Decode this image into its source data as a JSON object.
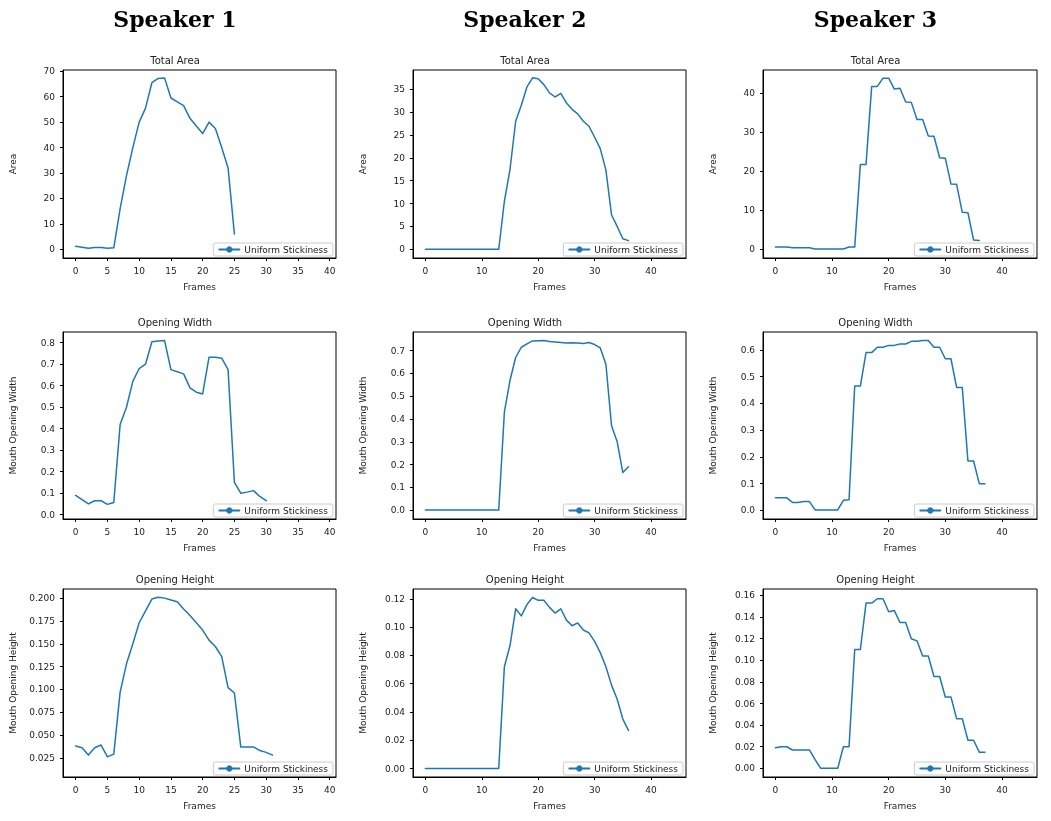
{
  "chart_data": [
    {
      "type": "line",
      "title": "Total Area",
      "annotations": [
        "Speaker 1"
      ],
      "xlabel": "Frames",
      "ylabel": "Area",
      "x": [
        0,
        1,
        2,
        3,
        4,
        5,
        6,
        7,
        8,
        9,
        10,
        11,
        12,
        13,
        14,
        15,
        16,
        17,
        18,
        19,
        20,
        21,
        22,
        23,
        24,
        25
      ],
      "series": [
        {
          "name": "Uniform Stickiness",
          "color": "#1f77b4",
          "values": [
            1.2,
            0.8,
            0.4,
            0.7,
            0.7,
            0.4,
            0.6,
            16,
            29,
            40,
            50,
            55.5,
            65.5,
            67.2,
            67.4,
            59.5,
            58,
            56.5,
            51.5,
            48.5,
            45.5,
            50,
            47.5,
            40,
            32,
            6
          ]
        }
      ],
      "xlim": [
        -2,
        41
      ],
      "xticks": [
        0,
        5,
        10,
        15,
        20,
        25,
        30,
        35,
        40
      ],
      "ylim": [
        -3.4,
        70.5
      ],
      "yticks": [
        0,
        10,
        20,
        30,
        40,
        50,
        60,
        70
      ],
      "legend": "bottom right",
      "marker": "none",
      "grid": false
    },
    {
      "type": "line",
      "title": "Total Area",
      "annotations": [
        "Speaker 2"
      ],
      "xlabel": "Frames",
      "ylabel": "Area",
      "x": [
        0,
        1,
        2,
        3,
        4,
        5,
        6,
        7,
        8,
        9,
        10,
        11,
        12,
        13,
        14,
        15,
        16,
        17,
        18,
        19,
        20,
        21,
        22,
        23,
        24,
        25,
        26,
        27,
        28,
        29,
        30,
        31,
        32,
        33,
        34,
        35,
        36
      ],
      "series": [
        {
          "name": "Uniform Stickiness",
          "color": "#1f77b4",
          "values": [
            0,
            0,
            0,
            0,
            0,
            0,
            0,
            0,
            0,
            0,
            0,
            0,
            0,
            0,
            10.5,
            17.5,
            28,
            31.5,
            35.5,
            37.5,
            37.3,
            36,
            34.2,
            33.3,
            34.1,
            32,
            30.6,
            29.6,
            28,
            26.9,
            24.5,
            22,
            17.3,
            7.5,
            5,
            2.3,
            1.9
          ]
        }
      ],
      "xlim": [
        -2.2,
        46.2
      ],
      "xticks": [
        0,
        10,
        20,
        30,
        40
      ],
      "ylim": [
        -1.9,
        39.2
      ],
      "yticks": [
        0,
        5,
        10,
        15,
        20,
        25,
        30,
        35
      ],
      "legend": "bottom right",
      "marker": "none",
      "grid": false
    },
    {
      "type": "line",
      "title": "Total Area",
      "annotations": [
        "Speaker 3"
      ],
      "xlabel": "Frames",
      "ylabel": "Area",
      "x": [
        0,
        1,
        2,
        3,
        4,
        5,
        6,
        7,
        8,
        9,
        10,
        11,
        12,
        13,
        14,
        15,
        16,
        17,
        18,
        19,
        20,
        21,
        22,
        23,
        24,
        25,
        26,
        27,
        28,
        29,
        30,
        31,
        32,
        33,
        34,
        35,
        36
      ],
      "series": [
        {
          "name": "Uniform Stickiness",
          "color": "#1f77b4",
          "values": [
            0.5,
            0.5,
            0.5,
            0.3,
            0.3,
            0.3,
            0.3,
            0,
            0,
            0,
            0,
            0,
            0,
            0.5,
            0.5,
            21.7,
            21.7,
            41.7,
            41.7,
            43.8,
            43.8,
            41,
            41.2,
            37.7,
            37.6,
            33.2,
            33.2,
            29,
            28.9,
            23.4,
            23.3,
            16.7,
            16.6,
            9.4,
            9.3,
            2.3,
            2.2
          ]
        }
      ],
      "xlim": [
        -2.2,
        46.2
      ],
      "xticks": [
        0,
        10,
        20,
        30,
        40
      ],
      "ylim": [
        -2.3,
        45.9
      ],
      "yticks": [
        0,
        10,
        20,
        30,
        40
      ],
      "legend": "bottom right",
      "marker": "none",
      "grid": false
    },
    {
      "type": "line",
      "title": "Opening Width",
      "xlabel": "Frames",
      "ylabel": "Mouth Opening Width",
      "x": [
        0,
        1,
        2,
        3,
        4,
        5,
        6,
        7,
        8,
        9,
        10,
        11,
        12,
        13,
        14,
        15,
        16,
        17,
        18,
        19,
        20,
        21,
        22,
        23,
        24,
        25,
        26,
        27,
        28,
        29,
        30
      ],
      "series": [
        {
          "name": "Uniform Stickiness",
          "color": "#1f77b4",
          "values": [
            0.09,
            0.07,
            0.05,
            0.065,
            0.065,
            0.048,
            0.057,
            0.42,
            0.5,
            0.62,
            0.68,
            0.7,
            0.805,
            0.808,
            0.81,
            0.675,
            0.665,
            0.655,
            0.59,
            0.57,
            0.562,
            0.733,
            0.732,
            0.728,
            0.675,
            0.15,
            0.1,
            0.105,
            0.112,
            0.085,
            0.065
          ]
        }
      ],
      "xlim": [
        -2,
        41
      ],
      "xticks": [
        0,
        5,
        10,
        15,
        20,
        25,
        30,
        35,
        40
      ],
      "ylim": [
        -0.02,
        0.85
      ],
      "yticks": [
        {
          "value": 0,
          "label": "0.0"
        },
        0.1,
        0.2,
        0.3,
        0.4,
        0.5,
        0.6,
        0.7,
        0.8
      ],
      "legend": "bottom right",
      "marker": "none",
      "grid": false
    },
    {
      "type": "line",
      "title": "Opening Width",
      "xlabel": "Frames",
      "ylabel": "Mouth Opening Width",
      "x": [
        0,
        1,
        2,
        3,
        4,
        5,
        6,
        7,
        8,
        9,
        10,
        11,
        12,
        13,
        14,
        15,
        16,
        17,
        18,
        19,
        20,
        21,
        22,
        23,
        24,
        25,
        26,
        27,
        28,
        29,
        30,
        31,
        32,
        33,
        34,
        35,
        36
      ],
      "series": [
        {
          "name": "Uniform Stickiness",
          "color": "#1f77b4",
          "values": [
            0,
            0,
            0,
            0,
            0,
            0,
            0,
            0,
            0,
            0,
            0,
            0,
            0,
            0,
            0.43,
            0.57,
            0.67,
            0.715,
            0.73,
            0.743,
            0.744,
            0.745,
            0.74,
            0.738,
            0.736,
            0.734,
            0.735,
            0.734,
            0.732,
            0.736,
            0.727,
            0.712,
            0.64,
            0.37,
            0.3,
            0.165,
            0.19
          ]
        }
      ],
      "xlim": [
        -2.2,
        46.2
      ],
      "xticks": [
        0,
        10,
        20,
        30,
        40
      ],
      "ylim": [
        -0.039,
        0.782
      ],
      "yticks": [
        {
          "value": 0,
          "label": "0.0"
        },
        0.1,
        0.2,
        0.3,
        0.4,
        0.5,
        0.6,
        0.7
      ],
      "legend": "bottom right",
      "marker": "none",
      "grid": false
    },
    {
      "type": "line",
      "title": "Opening Width",
      "xlabel": "Frames",
      "ylabel": "Mouth Opening Width",
      "x": [
        0,
        1,
        2,
        3,
        4,
        5,
        6,
        7,
        8,
        9,
        10,
        11,
        12,
        13,
        14,
        15,
        16,
        17,
        18,
        19,
        20,
        21,
        22,
        23,
        24,
        25,
        26,
        27,
        28,
        29,
        30,
        31,
        32,
        33,
        34,
        35,
        36,
        37
      ],
      "series": [
        {
          "name": "Uniform Stickiness",
          "color": "#1f77b4",
          "values": [
            0.047,
            0.047,
            0.047,
            0.03,
            0.03,
            0.033,
            0.033,
            0.002,
            0.002,
            0.002,
            0.002,
            0.002,
            0.038,
            0.04,
            0.465,
            0.465,
            0.59,
            0.59,
            0.61,
            0.61,
            0.617,
            0.617,
            0.622,
            0.622,
            0.632,
            0.632,
            0.635,
            0.635,
            0.61,
            0.61,
            0.567,
            0.567,
            0.46,
            0.46,
            0.185,
            0.185,
            0.1,
            0.1
          ]
        }
      ],
      "xlim": [
        -2.2,
        46.2
      ],
      "xticks": [
        0,
        10,
        20,
        30,
        40
      ],
      "ylim": [
        -0.032,
        0.667
      ],
      "yticks": [
        {
          "value": 0,
          "label": "0.0"
        },
        0.1,
        0.2,
        0.3,
        0.4,
        0.5,
        0.6
      ],
      "legend": "bottom right",
      "marker": "none",
      "grid": false
    },
    {
      "type": "line",
      "title": "Opening Height",
      "xlabel": "Frames",
      "ylabel": "Mouth Opening Height",
      "x": [
        0,
        1,
        2,
        3,
        4,
        5,
        6,
        7,
        8,
        9,
        10,
        11,
        12,
        13,
        14,
        15,
        16,
        17,
        18,
        19,
        20,
        21,
        22,
        23,
        24,
        25,
        26,
        27,
        28,
        29,
        30,
        31
      ],
      "series": [
        {
          "name": "Uniform Stickiness",
          "color": "#1f77b4",
          "values": [
            0.038,
            0.036,
            0.028,
            0.036,
            0.039,
            0.026,
            0.029,
            0.097,
            0.128,
            0.15,
            0.173,
            0.186,
            0.199,
            0.201,
            0.2,
            0.198,
            0.196,
            0.188,
            0.181,
            0.173,
            0.165,
            0.154,
            0.147,
            0.136,
            0.102,
            0.096,
            0.037,
            0.037,
            0.037,
            0.033,
            0.031,
            0.028
          ]
        }
      ],
      "xlim": [
        -2,
        41
      ],
      "xticks": [
        0,
        5,
        10,
        15,
        20,
        25,
        30,
        35,
        40
      ],
      "ylim": [
        0.004,
        0.21
      ],
      "yticks": [
        0.025,
        {
          "value": 0.05,
          "label": "0.050"
        },
        0.075,
        {
          "value": 0.1,
          "label": "0.100"
        },
        0.125,
        {
          "value": 0.15,
          "label": "0.150"
        },
        0.175,
        {
          "value": 0.2,
          "label": "0.200"
        }
      ],
      "legend": "bottom right",
      "marker": "none",
      "grid": false
    },
    {
      "type": "line",
      "title": "Opening Height",
      "xlabel": "Frames",
      "ylabel": "Mouth Opening Height",
      "x": [
        0,
        1,
        2,
        3,
        4,
        5,
        6,
        7,
        8,
        9,
        10,
        11,
        12,
        13,
        14,
        15,
        16,
        17,
        18,
        19,
        20,
        21,
        22,
        23,
        24,
        25,
        26,
        27,
        28,
        29,
        30,
        31,
        32,
        33,
        34,
        35,
        36
      ],
      "series": [
        {
          "name": "Uniform Stickiness",
          "color": "#1f77b4",
          "values": [
            0,
            0,
            0,
            0,
            0,
            0,
            0,
            0,
            0,
            0,
            0,
            0,
            0,
            0,
            0.072,
            0.087,
            0.113,
            0.108,
            0.116,
            0.121,
            0.119,
            0.119,
            0.114,
            0.11,
            0.113,
            0.105,
            0.101,
            0.103,
            0.098,
            0.096,
            0.09,
            0.082,
            0.072,
            0.059,
            0.049,
            0.035,
            0.027
          ]
        }
      ],
      "xlim": [
        -2.2,
        46.2
      ],
      "xticks": [
        0,
        10,
        20,
        30,
        40
      ],
      "ylim": [
        -0.006,
        0.127
      ],
      "yticks": [
        {
          "value": 0,
          "label": "0.00"
        },
        0.02,
        0.04,
        0.06,
        0.08,
        {
          "value": 0.1,
          "label": "0.10"
        },
        0.12
      ],
      "legend": "bottom right",
      "marker": "none",
      "grid": false
    },
    {
      "type": "line",
      "title": "Opening Height",
      "xlabel": "Frames",
      "ylabel": "Mouth Opening Height",
      "x": [
        0,
        1,
        2,
        3,
        4,
        5,
        6,
        7,
        8,
        9,
        10,
        11,
        12,
        13,
        14,
        15,
        16,
        17,
        18,
        19,
        20,
        21,
        22,
        23,
        24,
        25,
        26,
        27,
        28,
        29,
        30,
        31,
        32,
        33,
        34,
        35,
        36,
        37
      ],
      "series": [
        {
          "name": "Uniform Stickiness",
          "color": "#1f77b4",
          "values": [
            0.019,
            0.02,
            0.02,
            0.017,
            0.017,
            0.017,
            0.017,
            0.008,
            0,
            0,
            0,
            0,
            0.02,
            0.02,
            0.11,
            0.11,
            0.153,
            0.153,
            0.157,
            0.157,
            0.145,
            0.146,
            0.135,
            0.135,
            0.12,
            0.118,
            0.104,
            0.104,
            0.085,
            0.085,
            0.066,
            0.066,
            0.046,
            0.046,
            0.026,
            0.026,
            0.015,
            0.015
          ]
        }
      ],
      "xlim": [
        -2.2,
        46.2
      ],
      "xticks": [
        0,
        10,
        20,
        30,
        40
      ],
      "ylim": [
        -0.008,
        0.166
      ],
      "yticks": [
        {
          "value": 0,
          "label": "0.00"
        },
        0.02,
        0.04,
        0.06,
        0.08,
        {
          "value": 0.1,
          "label": "0.10"
        },
        0.12,
        0.14,
        0.16
      ],
      "legend": "bottom right",
      "marker": "none",
      "grid": false
    }
  ]
}
